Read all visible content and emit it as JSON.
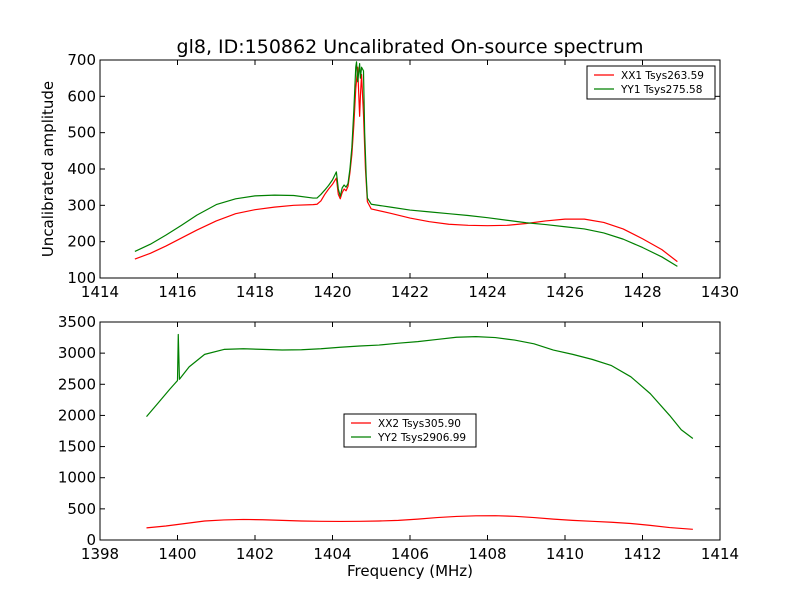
{
  "figure": {
    "title": "gl8, ID:150862 Uncalibrated On-source spectrum",
    "xlabel": "Frequency (MHz)"
  },
  "chart_data": [
    {
      "type": "line",
      "ylabel": "Uncalibrated amplitude",
      "xlim": [
        1414,
        1430
      ],
      "ylim": [
        100,
        700
      ],
      "xticks": [
        1414,
        1416,
        1418,
        1420,
        1422,
        1424,
        1426,
        1428,
        1430
      ],
      "yticks": [
        100,
        200,
        300,
        400,
        500,
        600,
        700
      ],
      "grid": false,
      "legend_position": "upper-right",
      "series": [
        {
          "name": "XX1 Tsys263.59",
          "color": "#ff0000",
          "points": [
            [
              1414.9,
              152
            ],
            [
              1415.3,
              168
            ],
            [
              1415.7,
              188
            ],
            [
              1416.1,
              210
            ],
            [
              1416.5,
              232
            ],
            [
              1417.0,
              257
            ],
            [
              1417.5,
              277
            ],
            [
              1418.0,
              288
            ],
            [
              1418.5,
              295
            ],
            [
              1419.0,
              300
            ],
            [
              1419.5,
              302
            ],
            [
              1419.6,
              303
            ],
            [
              1419.7,
              312
            ],
            [
              1419.8,
              330
            ],
            [
              1419.9,
              345
            ],
            [
              1420.0,
              358
            ],
            [
              1420.1,
              375
            ],
            [
              1420.15,
              330
            ],
            [
              1420.2,
              318
            ],
            [
              1420.25,
              335
            ],
            [
              1420.3,
              345
            ],
            [
              1420.35,
              340
            ],
            [
              1420.4,
              352
            ],
            [
              1420.45,
              390
            ],
            [
              1420.5,
              440
            ],
            [
              1420.55,
              520
            ],
            [
              1420.6,
              620
            ],
            [
              1420.65,
              680
            ],
            [
              1420.7,
              545
            ],
            [
              1420.72,
              600
            ],
            [
              1420.75,
              660
            ],
            [
              1420.8,
              550
            ],
            [
              1420.85,
              400
            ],
            [
              1420.9,
              310
            ],
            [
              1421.0,
              290
            ],
            [
              1421.5,
              278
            ],
            [
              1422.0,
              265
            ],
            [
              1422.5,
              255
            ],
            [
              1423.0,
              248
            ],
            [
              1423.5,
              245
            ],
            [
              1424.0,
              244
            ],
            [
              1424.5,
              245
            ],
            [
              1425.0,
              250
            ],
            [
              1425.5,
              257
            ],
            [
              1426.0,
              262
            ],
            [
              1426.5,
              262
            ],
            [
              1427.0,
              253
            ],
            [
              1427.5,
              235
            ],
            [
              1428.0,
              208
            ],
            [
              1428.5,
              178
            ],
            [
              1428.9,
              145
            ]
          ]
        },
        {
          "name": "YY1 Tsys275.58",
          "color": "#008000",
          "points": [
            [
              1414.9,
              173
            ],
            [
              1415.3,
              193
            ],
            [
              1415.7,
              218
            ],
            [
              1416.1,
              245
            ],
            [
              1416.5,
              273
            ],
            [
              1417.0,
              302
            ],
            [
              1417.5,
              318
            ],
            [
              1418.0,
              326
            ],
            [
              1418.5,
              328
            ],
            [
              1419.0,
              327
            ],
            [
              1419.5,
              320
            ],
            [
              1419.6,
              320
            ],
            [
              1419.7,
              330
            ],
            [
              1419.8,
              342
            ],
            [
              1419.9,
              355
            ],
            [
              1420.0,
              370
            ],
            [
              1420.1,
              392
            ],
            [
              1420.15,
              345
            ],
            [
              1420.2,
              325
            ],
            [
              1420.25,
              348
            ],
            [
              1420.3,
              356
            ],
            [
              1420.35,
              350
            ],
            [
              1420.4,
              360
            ],
            [
              1420.45,
              400
            ],
            [
              1420.5,
              460
            ],
            [
              1420.55,
              560
            ],
            [
              1420.6,
              680
            ],
            [
              1420.62,
              695
            ],
            [
              1420.65,
              640
            ],
            [
              1420.7,
              690
            ],
            [
              1420.72,
              650
            ],
            [
              1420.75,
              680
            ],
            [
              1420.8,
              670
            ],
            [
              1420.83,
              500
            ],
            [
              1420.87,
              380
            ],
            [
              1420.9,
              320
            ],
            [
              1421.0,
              303
            ],
            [
              1421.5,
              295
            ],
            [
              1422.0,
              287
            ],
            [
              1422.5,
              282
            ],
            [
              1423.0,
              277
            ],
            [
              1423.5,
              272
            ],
            [
              1424.0,
              266
            ],
            [
              1424.5,
              259
            ],
            [
              1425.0,
              252
            ],
            [
              1425.5,
              247
            ],
            [
              1426.0,
              241
            ],
            [
              1426.5,
              235
            ],
            [
              1427.0,
              224
            ],
            [
              1427.5,
              207
            ],
            [
              1428.0,
              184
            ],
            [
              1428.5,
              158
            ],
            [
              1428.9,
              132
            ]
          ]
        }
      ]
    },
    {
      "type": "line",
      "ylabel": "",
      "xlabel": "Frequency (MHz)",
      "xlim": [
        1398,
        1414
      ],
      "ylim": [
        0,
        3500
      ],
      "xticks": [
        1398,
        1400,
        1402,
        1404,
        1406,
        1408,
        1410,
        1412,
        1414
      ],
      "yticks": [
        0,
        500,
        1000,
        1500,
        2000,
        2500,
        3000,
        3500
      ],
      "grid": false,
      "legend_position": "center",
      "series": [
        {
          "name": "XX2 Tsys305.90",
          "color": "#ff0000",
          "points": [
            [
              1399.2,
              195
            ],
            [
              1399.7,
              225
            ],
            [
              1400.2,
              265
            ],
            [
              1400.7,
              305
            ],
            [
              1401.2,
              322
            ],
            [
              1401.7,
              330
            ],
            [
              1402.2,
              325
            ],
            [
              1402.7,
              315
            ],
            [
              1403.2,
              305
            ],
            [
              1403.7,
              300
            ],
            [
              1404.2,
              298
            ],
            [
              1404.7,
              300
            ],
            [
              1405.2,
              305
            ],
            [
              1405.7,
              315
            ],
            [
              1406.2,
              335
            ],
            [
              1406.7,
              360
            ],
            [
              1407.2,
              378
            ],
            [
              1407.7,
              388
            ],
            [
              1408.2,
              390
            ],
            [
              1408.7,
              380
            ],
            [
              1409.2,
              360
            ],
            [
              1409.7,
              335
            ],
            [
              1410.2,
              315
            ],
            [
              1410.7,
              300
            ],
            [
              1411.2,
              285
            ],
            [
              1411.7,
              265
            ],
            [
              1412.2,
              235
            ],
            [
              1412.7,
              200
            ],
            [
              1413.3,
              172
            ]
          ]
        },
        {
          "name": "YY2 Tsys2906.99",
          "color": "#008000",
          "points": [
            [
              1399.2,
              1980
            ],
            [
              1399.5,
              2200
            ],
            [
              1399.8,
              2420
            ],
            [
              1400.0,
              2560
            ],
            [
              1400.02,
              3300
            ],
            [
              1400.05,
              2580
            ],
            [
              1400.3,
              2780
            ],
            [
              1400.7,
              2980
            ],
            [
              1401.2,
              3060
            ],
            [
              1401.7,
              3070
            ],
            [
              1402.2,
              3060
            ],
            [
              1402.7,
              3050
            ],
            [
              1403.2,
              3055
            ],
            [
              1403.7,
              3070
            ],
            [
              1404.2,
              3095
            ],
            [
              1404.7,
              3115
            ],
            [
              1405.2,
              3130
            ],
            [
              1405.7,
              3160
            ],
            [
              1406.2,
              3185
            ],
            [
              1406.7,
              3220
            ],
            [
              1407.2,
              3255
            ],
            [
              1407.7,
              3265
            ],
            [
              1408.2,
              3250
            ],
            [
              1408.7,
              3210
            ],
            [
              1409.2,
              3150
            ],
            [
              1409.7,
              3050
            ],
            [
              1410.2,
              2980
            ],
            [
              1410.7,
              2900
            ],
            [
              1411.2,
              2800
            ],
            [
              1411.7,
              2620
            ],
            [
              1412.2,
              2350
            ],
            [
              1412.7,
              2000
            ],
            [
              1413.0,
              1770
            ],
            [
              1413.3,
              1630
            ]
          ]
        }
      ]
    }
  ]
}
